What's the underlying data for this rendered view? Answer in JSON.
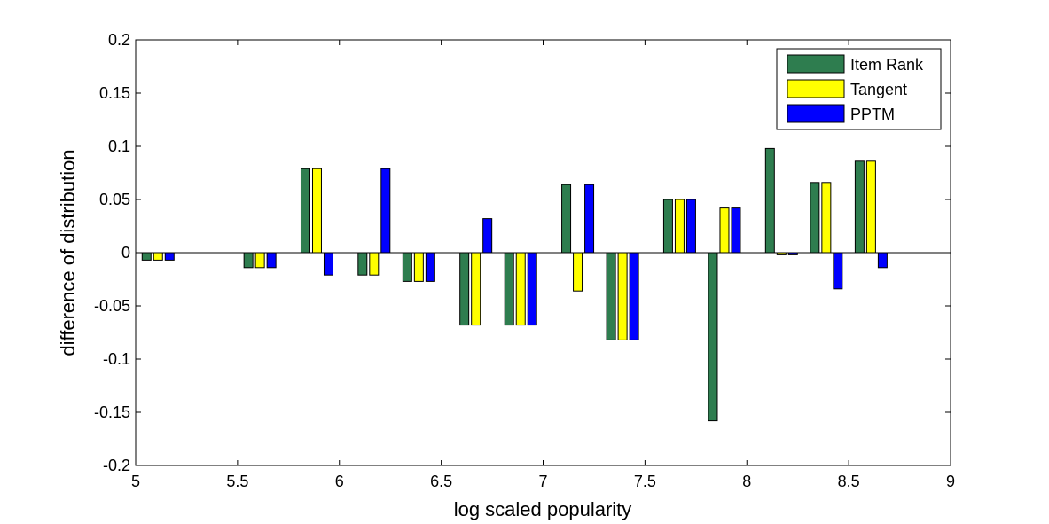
{
  "chart_data": {
    "type": "bar",
    "title": "",
    "xlabel": "log scaled popularity",
    "ylabel": "difference of distribution",
    "xlim": [
      5,
      9
    ],
    "ylim": [
      -0.2,
      0.2
    ],
    "xticks": [
      "5",
      "5.5",
      "6",
      "6.5",
      "7",
      "7.5",
      "8",
      "8.5",
      "9"
    ],
    "yticks": [
      "-0.2",
      "-0.15",
      "-0.1",
      "-0.05",
      "0",
      "0.05",
      "0.1",
      "0.15",
      "0.2"
    ],
    "grid": false,
    "legend_position": "top-right",
    "x": [
      5.11,
      5.61,
      5.89,
      6.17,
      6.39,
      6.67,
      6.89,
      7.17,
      7.39,
      7.67,
      7.89,
      8.17,
      8.39,
      8.61
    ],
    "series": [
      {
        "name": "Item Rank",
        "color": "#2e7d4f",
        "values": [
          -0.007,
          -0.014,
          0.079,
          -0.021,
          -0.027,
          -0.068,
          -0.068,
          0.064,
          -0.082,
          0.05,
          -0.158,
          0.098,
          0.066,
          0.086
        ]
      },
      {
        "name": "Tangent",
        "color": "#ffff00",
        "values": [
          -0.007,
          -0.014,
          0.079,
          -0.021,
          -0.027,
          -0.068,
          -0.068,
          -0.036,
          -0.082,
          0.05,
          0.042,
          -0.002,
          0.066,
          0.086
        ]
      },
      {
        "name": "PPTM",
        "color": "#0000ff",
        "values": [
          -0.007,
          -0.014,
          -0.021,
          0.079,
          -0.027,
          0.032,
          -0.068,
          0.064,
          -0.082,
          0.05,
          0.042,
          -0.002,
          -0.034,
          -0.014
        ]
      }
    ]
  }
}
